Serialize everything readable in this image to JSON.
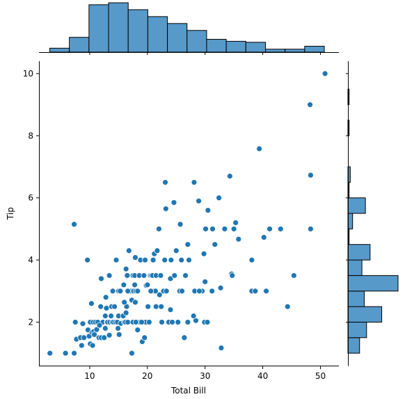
{
  "chart_data": {
    "type": "scatter",
    "title": "",
    "xlabel": "Total Bill",
    "ylabel": "Tip",
    "xlim": [
      1.2,
      53.2
    ],
    "ylim": [
      0.6,
      10.4
    ],
    "xticks": [
      10,
      20,
      30,
      40,
      50
    ],
    "yticks": [
      2,
      4,
      6,
      8,
      10
    ],
    "grid": false,
    "legend": "none",
    "colors": {
      "point": "#1f77b4",
      "bar": "#5799c9",
      "edge": "#000000"
    },
    "points": [
      [
        3.1,
        1.0
      ],
      [
        5.8,
        1.0
      ],
      [
        7.3,
        1.0
      ],
      [
        7.3,
        5.15
      ],
      [
        7.5,
        2.0
      ],
      [
        7.7,
        1.45
      ],
      [
        8.4,
        1.5
      ],
      [
        8.6,
        1.25
      ],
      [
        8.8,
        1.95
      ],
      [
        9.0,
        1.5
      ],
      [
        9.6,
        4.0
      ],
      [
        9.7,
        1.75
      ],
      [
        9.9,
        1.55
      ],
      [
        10.1,
        1.3
      ],
      [
        10.1,
        2.0
      ],
      [
        10.3,
        2.6
      ],
      [
        10.4,
        1.67
      ],
      [
        10.5,
        1.25
      ],
      [
        10.6,
        2.0
      ],
      [
        10.7,
        1.7
      ],
      [
        11.0,
        2.0
      ],
      [
        11.2,
        1.76
      ],
      [
        11.4,
        2.0
      ],
      [
        11.6,
        1.5
      ],
      [
        11.9,
        2.5
      ],
      [
        12.0,
        1.5
      ],
      [
        12.0,
        3.4
      ],
      [
        12.3,
        2.0
      ],
      [
        12.5,
        1.5
      ],
      [
        12.7,
        2.2
      ],
      [
        12.7,
        1.8
      ],
      [
        12.9,
        2.45
      ],
      [
        13.0,
        2.0
      ],
      [
        13.1,
        2.0
      ],
      [
        13.4,
        3.5
      ],
      [
        13.4,
        1.58
      ],
      [
        13.5,
        2.0
      ],
      [
        13.8,
        2.5
      ],
      [
        13.9,
        2.0
      ],
      [
        14.0,
        3.0
      ],
      [
        14.1,
        2.0
      ],
      [
        14.3,
        2.5
      ],
      [
        14.5,
        2.0
      ],
      [
        14.6,
        4.0
      ],
      [
        14.8,
        2.0
      ],
      [
        15.0,
        2.2
      ],
      [
        15.0,
        3.0
      ],
      [
        15.1,
        1.6
      ],
      [
        15.4,
        1.96
      ],
      [
        15.5,
        3.0
      ],
      [
        15.8,
        2.2
      ],
      [
        15.9,
        3.2
      ],
      [
        16.0,
        2.0
      ],
      [
        16.2,
        2.0
      ],
      [
        16.3,
        3.71
      ],
      [
        16.4,
        2.5
      ],
      [
        16.5,
        3.5
      ],
      [
        16.6,
        2.0
      ],
      [
        16.8,
        4.3
      ],
      [
        16.9,
        3.0
      ],
      [
        17.1,
        3.0
      ],
      [
        17.3,
        1.0
      ],
      [
        17.3,
        2.71
      ],
      [
        17.5,
        2.0
      ],
      [
        17.5,
        3.5
      ],
      [
        17.6,
        3.0
      ],
      [
        17.8,
        3.5
      ],
      [
        17.9,
        4.08
      ],
      [
        18.0,
        3.0
      ],
      [
        18.2,
        2.0
      ],
      [
        18.3,
        1.75
      ],
      [
        18.4,
        3.0
      ],
      [
        18.6,
        3.5
      ],
      [
        18.7,
        2.0
      ],
      [
        18.8,
        4.0
      ],
      [
        19.1,
        1.37
      ],
      [
        19.4,
        3.5
      ],
      [
        19.5,
        1.5
      ],
      [
        19.7,
        2.0
      ],
      [
        19.8,
        3.18
      ],
      [
        20.1,
        2.5
      ],
      [
        20.3,
        2.0
      ],
      [
        20.5,
        3.5
      ],
      [
        20.7,
        3.5
      ],
      [
        20.9,
        3.5
      ],
      [
        21.0,
        3.0
      ],
      [
        21.2,
        4.2
      ],
      [
        21.4,
        3.0
      ],
      [
        21.5,
        3.5
      ],
      [
        21.7,
        4.3
      ],
      [
        22.0,
        5.0
      ],
      [
        22.1,
        2.88
      ],
      [
        22.3,
        3.5
      ],
      [
        22.8,
        3.0
      ],
      [
        23.1,
        6.5
      ],
      [
        23.2,
        5.65
      ],
      [
        23.3,
        3.0
      ],
      [
        23.7,
        2.0
      ],
      [
        24.0,
        3.4
      ],
      [
        24.3,
        2.0
      ],
      [
        24.6,
        5.85
      ],
      [
        24.7,
        3.5
      ],
      [
        25.0,
        4.3
      ],
      [
        25.3,
        2.0
      ],
      [
        25.6,
        3.0
      ],
      [
        25.7,
        5.15
      ],
      [
        26.4,
        1.5
      ],
      [
        26.6,
        3.5
      ],
      [
        27.0,
        2.0
      ],
      [
        27.2,
        4.0
      ],
      [
        28.1,
        6.5
      ],
      [
        28.2,
        3.0
      ],
      [
        28.4,
        2.05
      ],
      [
        28.9,
        5.9
      ],
      [
        29.5,
        3.0
      ],
      [
        29.8,
        4.2
      ],
      [
        29.9,
        2.0
      ],
      [
        30.1,
        5.0
      ],
      [
        30.4,
        2.0
      ],
      [
        30.5,
        5.6
      ],
      [
        31.3,
        5.0
      ],
      [
        31.7,
        4.5
      ],
      [
        32.4,
        6.0
      ],
      [
        32.7,
        3.1
      ],
      [
        32.8,
        1.17
      ],
      [
        33.4,
        5.0
      ],
      [
        34.3,
        6.7
      ],
      [
        34.6,
        3.55
      ],
      [
        35.0,
        5.0
      ],
      [
        35.3,
        5.2
      ],
      [
        35.8,
        4.67
      ],
      [
        38.1,
        4.0
      ],
      [
        38.1,
        3.0
      ],
      [
        38.7,
        3.0
      ],
      [
        39.4,
        7.58
      ],
      [
        40.2,
        4.73
      ],
      [
        40.5,
        3.0
      ],
      [
        41.2,
        5.0
      ],
      [
        43.1,
        5.0
      ],
      [
        44.3,
        2.5
      ],
      [
        45.4,
        3.5
      ],
      [
        48.2,
        9.0
      ],
      [
        48.3,
        6.73
      ],
      [
        48.3,
        5.0
      ],
      [
        50.8,
        10.0
      ],
      [
        15.4,
        3.0
      ],
      [
        16.6,
        3.0
      ],
      [
        17.8,
        3.2
      ],
      [
        19.6,
        4.0
      ],
      [
        20.6,
        3.0
      ],
      [
        21.0,
        4.0
      ],
      [
        21.5,
        2.5
      ],
      [
        22.5,
        2.0
      ],
      [
        23.0,
        4.0
      ],
      [
        24.1,
        4.0
      ],
      [
        25.9,
        4.0
      ],
      [
        27.0,
        4.5
      ],
      [
        29.0,
        3.0
      ],
      [
        31.2,
        3.0
      ],
      [
        34.7,
        3.5
      ],
      [
        38.7,
        3.0
      ],
      [
        40.6,
        3.0
      ],
      [
        17.9,
        2.64
      ],
      [
        18.0,
        2.0
      ],
      [
        19.0,
        2.0
      ],
      [
        22.4,
        2.5
      ],
      [
        15.3,
        3.0
      ],
      [
        16.0,
        2.64
      ],
      [
        18.3,
        3.0
      ],
      [
        20.0,
        3.2
      ],
      [
        24.0,
        2.4
      ],
      [
        26.0,
        3.0
      ],
      [
        28.0,
        2.2
      ],
      [
        30.0,
        3.3
      ],
      [
        12.8,
        2.8
      ],
      [
        13.7,
        2.2
      ],
      [
        11.7,
        1.9
      ],
      [
        10.8,
        1.6
      ],
      [
        14.9,
        1.8
      ],
      [
        16.3,
        2.3
      ]
    ],
    "top_hist": {
      "bin_start": 3.07,
      "bin_width": 3.4,
      "counts": [
        4,
        15,
        48,
        50,
        43,
        36,
        29,
        22,
        13,
        11,
        10,
        3,
        3,
        6
      ]
    },
    "right_hist": {
      "bin_start": 1.0,
      "bin_width": 0.5,
      "counts": [
        10,
        16,
        29,
        14,
        43,
        12,
        19,
        1,
        4,
        15,
        1,
        2,
        0,
        0,
        1,
        0,
        1,
        0
      ]
    }
  }
}
